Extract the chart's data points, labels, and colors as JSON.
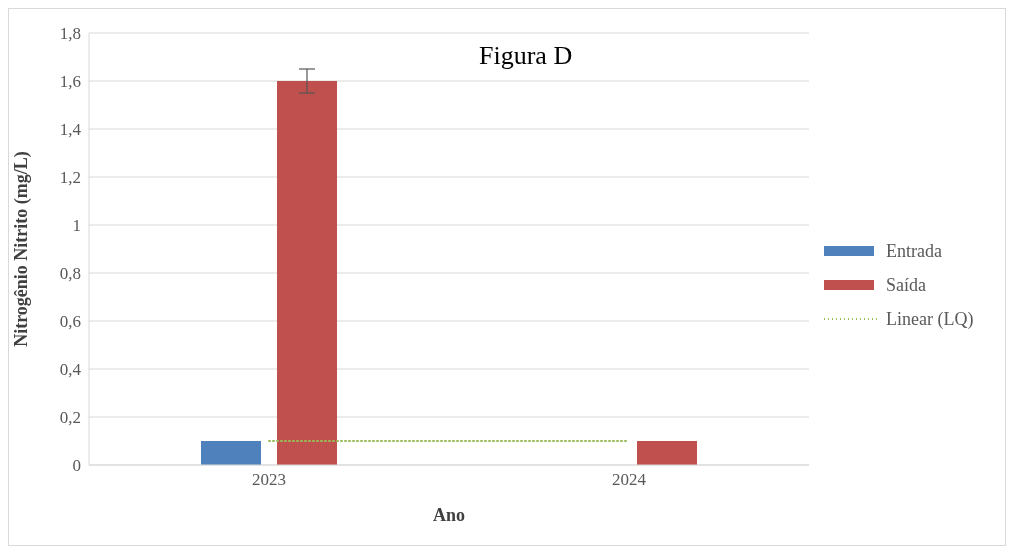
{
  "chart_data": {
    "type": "bar",
    "title": "Figura D",
    "xlabel": "Ano",
    "ylabel": "Nitrogênio Nitrito (mg/L)",
    "categories": [
      "2023",
      "2024"
    ],
    "series": [
      {
        "name": "Entrada",
        "color": "#4f81bd",
        "values": [
          0.1,
          0
        ]
      },
      {
        "name": "Saída",
        "color": "#c0504d",
        "values": [
          1.6,
          0.1
        ],
        "errors": [
          0.05,
          null
        ]
      },
      {
        "name": "Linear (LQ)",
        "type": "line",
        "color": "#9bbb59",
        "values": [
          0.1,
          0.1
        ],
        "line_style": "dotted",
        "marker": "none"
      }
    ],
    "ylim": [
      0,
      1.8
    ],
    "yticks": [
      0,
      {
        "value": 0.2,
        "label": "0,2"
      },
      {
        "value": 0.4,
        "label": "0,4"
      },
      {
        "value": 0.6,
        "label": "0,6"
      },
      {
        "value": 0.8,
        "label": "0,8"
      },
      1,
      {
        "value": 1.2,
        "label": "1,2"
      },
      {
        "value": 1.4,
        "label": "1,4"
      },
      {
        "value": 1.6,
        "label": "1,6"
      },
      {
        "value": 1.8,
        "label": "1,8"
      }
    ],
    "grid": "y",
    "legend": "right"
  }
}
